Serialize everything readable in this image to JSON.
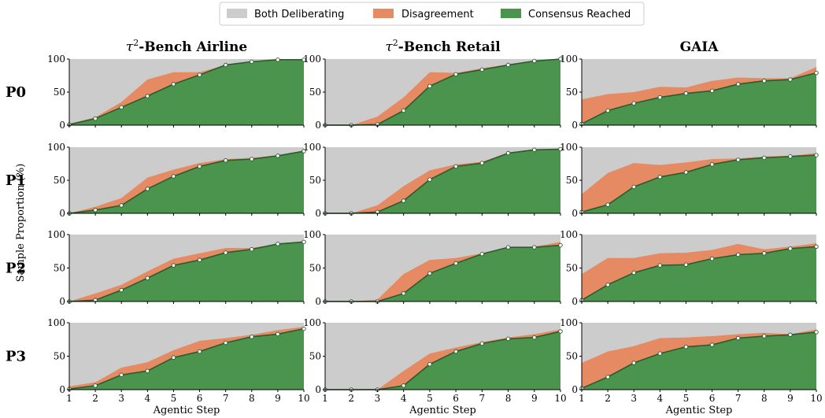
{
  "chart_data": {
    "type": "area",
    "stacked": true,
    "columns": [
      {
        "prefix": "τ",
        "sup": "2",
        "rest": "-Bench Airline"
      },
      {
        "prefix": "τ",
        "sup": "2",
        "rest": "-Bench Retail"
      },
      {
        "prefix": "",
        "sup": "",
        "rest": "GAIA"
      }
    ],
    "rows": [
      "P0",
      "P1",
      "P2",
      "P3"
    ],
    "x": [
      1,
      2,
      3,
      4,
      5,
      6,
      7,
      8,
      9,
      10
    ],
    "xlabel": "Agentic Step",
    "ylabel": "Sample Proportion (%)",
    "ylim": [
      0,
      100
    ],
    "yticks": [
      0,
      50,
      100
    ],
    "legend": {
      "placement": "top-center",
      "entries": [
        {
          "label": "Both Deliberating",
          "color": "#cccccc"
        },
        {
          "label": "Disagreement",
          "color": "#e58a63"
        },
        {
          "label": "Consensus Reached",
          "color": "#4a944e"
        }
      ]
    },
    "colors": {
      "line": "#2d5a2e",
      "marker_fill": "#ffffff"
    },
    "series_note_order": [
      "Consensus Reached",
      "Disagreement",
      "Both Deliberating"
    ],
    "panels": [
      {
        "row": "P0",
        "col": 0,
        "consensus": [
          1,
          10,
          27,
          44,
          62,
          76,
          91,
          96,
          99,
          99
        ],
        "disagreement": [
          1,
          2,
          8,
          25,
          18,
          4,
          0,
          0,
          0,
          0
        ]
      },
      {
        "row": "P0",
        "col": 1,
        "consensus": [
          0,
          0,
          1,
          22,
          59,
          77,
          84,
          91,
          97,
          100
        ],
        "disagreement": [
          0,
          0,
          12,
          20,
          21,
          2,
          2,
          1,
          0,
          0
        ]
      },
      {
        "row": "P0",
        "col": 2,
        "consensus": [
          2,
          22,
          33,
          42,
          48,
          52,
          62,
          67,
          69,
          79
        ],
        "disagreement": [
          37,
          25,
          17,
          16,
          9,
          15,
          10,
          4,
          2,
          9
        ]
      },
      {
        "row": "P1",
        "col": 0,
        "consensus": [
          0,
          5,
          12,
          37,
          56,
          71,
          80,
          82,
          87,
          94
        ],
        "disagreement": [
          0,
          5,
          11,
          17,
          10,
          5,
          2,
          2,
          1,
          1
        ]
      },
      {
        "row": "P1",
        "col": 1,
        "consensus": [
          0,
          0,
          2,
          19,
          51,
          71,
          76,
          91,
          96,
          97
        ],
        "disagreement": [
          0,
          0,
          10,
          22,
          14,
          3,
          2,
          1,
          0,
          0
        ]
      },
      {
        "row": "P1",
        "col": 2,
        "consensus": [
          2,
          13,
          40,
          55,
          62,
          74,
          81,
          84,
          86,
          88
        ],
        "disagreement": [
          27,
          48,
          36,
          18,
          15,
          8,
          2,
          2,
          1,
          3
        ]
      },
      {
        "row": "P2",
        "col": 0,
        "consensus": [
          0,
          2,
          17,
          35,
          54,
          62,
          73,
          78,
          86,
          89
        ],
        "disagreement": [
          0,
          10,
          8,
          10,
          10,
          10,
          7,
          2,
          0,
          0
        ]
      },
      {
        "row": "P2",
        "col": 1,
        "consensus": [
          0,
          0,
          0,
          12,
          42,
          57,
          71,
          81,
          81,
          84
        ],
        "disagreement": [
          0,
          0,
          3,
          29,
          20,
          8,
          1,
          0,
          1,
          5
        ]
      },
      {
        "row": "P2",
        "col": 2,
        "consensus": [
          2,
          25,
          43,
          54,
          55,
          64,
          70,
          72,
          79,
          82
        ],
        "disagreement": [
          39,
          40,
          22,
          18,
          18,
          13,
          16,
          6,
          3,
          5
        ]
      },
      {
        "row": "P3",
        "col": 0,
        "consensus": [
          1,
          6,
          22,
          28,
          48,
          57,
          70,
          79,
          83,
          91
        ],
        "disagreement": [
          4,
          5,
          11,
          13,
          11,
          16,
          7,
          3,
          6,
          3
        ]
      },
      {
        "row": "P3",
        "col": 1,
        "consensus": [
          0,
          0,
          0,
          6,
          38,
          57,
          69,
          76,
          78,
          87
        ],
        "disagreement": [
          0,
          0,
          0,
          22,
          16,
          6,
          2,
          2,
          5,
          3
        ]
      },
      {
        "row": "P3",
        "col": 2,
        "consensus": [
          2,
          19,
          40,
          54,
          64,
          67,
          77,
          80,
          82,
          86
        ],
        "disagreement": [
          38,
          38,
          25,
          23,
          14,
          13,
          6,
          5,
          1,
          4
        ]
      }
    ]
  }
}
